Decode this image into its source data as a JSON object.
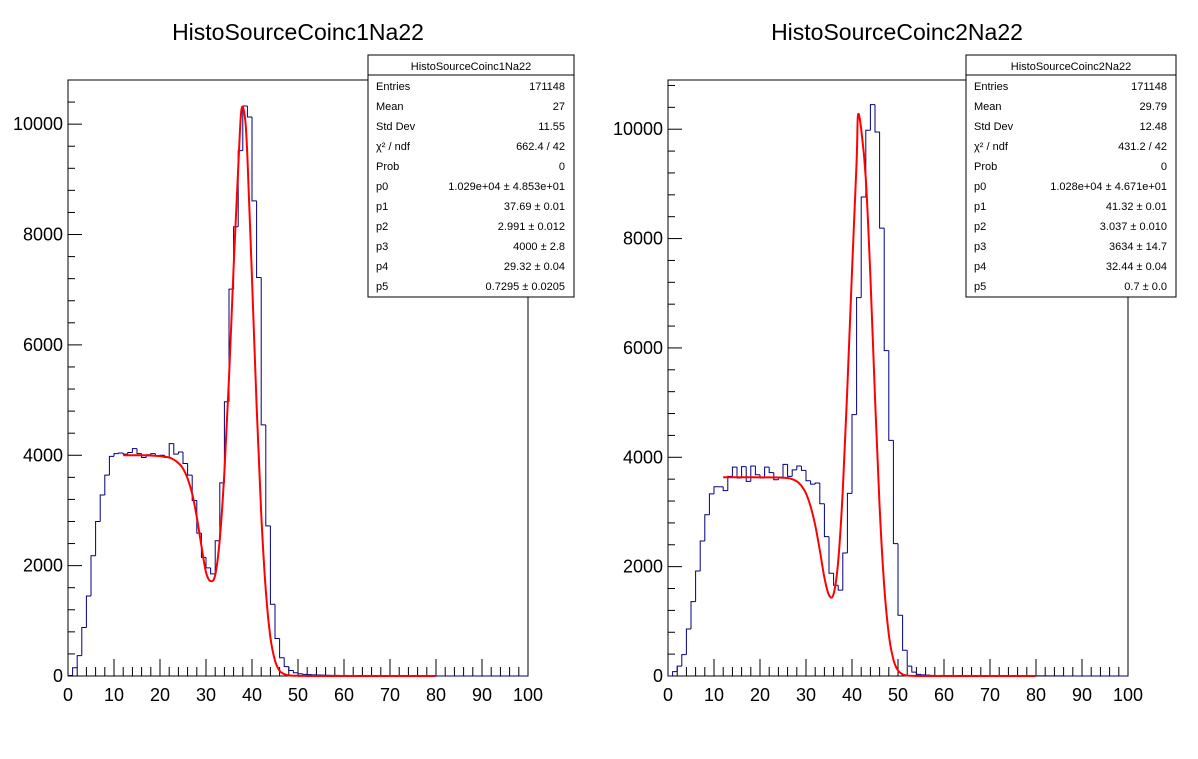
{
  "chart_data": [
    {
      "type": "histogram",
      "title": "HistoSourceCoinc1Na22",
      "xlabel": "",
      "ylabel": "",
      "xlim": [
        0,
        100
      ],
      "ylim": [
        0,
        10800
      ],
      "grid": false,
      "legend": "top-right",
      "bin_width": 1,
      "x_ticks": [
        "0",
        "10",
        "20",
        "30",
        "40",
        "50",
        "60",
        "70",
        "80",
        "90",
        "100"
      ],
      "y_ticks": [
        "0",
        "2000",
        "4000",
        "6000",
        "8000",
        "10000"
      ],
      "colors": {
        "histogram": "#000080",
        "fit": "#ff0000"
      },
      "series": [
        {
          "values": [
            10,
            150,
            370,
            880,
            1450,
            2180,
            2800,
            3280,
            3640,
            3980,
            4030,
            4040,
            4020,
            4050,
            4120,
            4030,
            3960,
            4010,
            4030,
            3990,
            4000,
            3960,
            4210,
            4020,
            4060,
            3850,
            3640,
            3180,
            2590,
            2150,
            1960,
            1850,
            2450,
            3500,
            4970,
            7010,
            8140,
            9520,
            10330,
            10130,
            8610,
            7220,
            4550,
            2720,
            1300,
            680,
            330,
            170,
            100,
            60,
            40,
            30,
            25,
            20,
            18,
            15,
            14,
            12,
            11,
            10,
            10,
            9,
            8,
            8,
            7,
            7,
            6,
            6,
            6,
            5,
            5,
            5,
            5,
            4,
            4,
            4,
            4,
            3,
            3,
            3,
            0,
            0,
            0,
            0,
            0,
            0,
            0,
            0,
            0,
            0,
            0,
            0,
            0,
            0,
            0,
            0,
            0,
            0,
            0,
            0
          ]
        },
        {
          "fit": true,
          "x": [
            12,
            14,
            16,
            18,
            20,
            22,
            23,
            24,
            25,
            26,
            27,
            28,
            29,
            30,
            31,
            32,
            33,
            34,
            35,
            36,
            37,
            37.7,
            38.5,
            39,
            40,
            41,
            42,
            43,
            44,
            45,
            46,
            47,
            48,
            50,
            52,
            55,
            60,
            65,
            70,
            75,
            80
          ],
          "y": [
            4000,
            4000,
            4000,
            3995,
            3985,
            3960,
            3920,
            3860,
            3760,
            3580,
            3300,
            2880,
            2360,
            1880,
            1720,
            1830,
            2480,
            3700,
            5400,
            7400,
            9200,
            10260,
            10100,
            9400,
            7200,
            4900,
            2950,
            1550,
            700,
            280,
            95,
            35,
            12,
            3,
            1,
            0,
            0,
            0,
            0,
            0,
            0
          ]
        }
      ]
    },
    {
      "type": "histogram",
      "title": "HistoSourceCoinc2Na22",
      "xlabel": "",
      "ylabel": "",
      "xlim": [
        0,
        100
      ],
      "ylim": [
        0,
        10900
      ],
      "grid": false,
      "legend": "top-right",
      "bin_width": 1,
      "x_ticks": [
        "0",
        "10",
        "20",
        "30",
        "40",
        "50",
        "60",
        "70",
        "80",
        "90",
        "100"
      ],
      "y_ticks": [
        "0",
        "2000",
        "4000",
        "6000",
        "8000",
        "10000"
      ],
      "colors": {
        "histogram": "#000080",
        "fit": "#ff0000"
      },
      "series": [
        {
          "values": [
            0,
            80,
            180,
            390,
            860,
            1360,
            1920,
            2470,
            2950,
            3330,
            3460,
            3460,
            3390,
            3650,
            3820,
            3620,
            3830,
            3560,
            3840,
            3680,
            3620,
            3820,
            3720,
            3590,
            3640,
            3870,
            3650,
            3770,
            3840,
            3760,
            3570,
            3510,
            3530,
            3150,
            2550,
            1880,
            1660,
            1570,
            2250,
            3340,
            4780,
            6920,
            8760,
            9980,
            10450,
            9950,
            8190,
            5950,
            4310,
            2420,
            1110,
            470,
            180,
            70,
            30,
            20,
            15,
            12,
            10,
            10,
            9,
            8,
            8,
            7,
            7,
            6,
            6,
            6,
            5,
            5,
            5,
            5,
            4,
            4,
            4,
            4,
            3,
            3,
            3,
            3,
            3,
            3,
            2,
            2,
            2,
            2,
            0,
            0,
            0,
            0,
            0,
            0,
            0,
            0,
            0,
            0,
            0,
            0,
            0,
            0
          ]
        },
        {
          "fit": true,
          "x": [
            12,
            15,
            18,
            21,
            24,
            26,
            27,
            28,
            29,
            30,
            31,
            32,
            33,
            34,
            35,
            36,
            37,
            38,
            39,
            40,
            41,
            41.3,
            42,
            43,
            44,
            45,
            46,
            47,
            48,
            49,
            50,
            51,
            52,
            54,
            56,
            60,
            65,
            70,
            75,
            80
          ],
          "y": [
            3634,
            3634,
            3634,
            3632,
            3630,
            3620,
            3600,
            3560,
            3480,
            3340,
            3100,
            2760,
            2300,
            1800,
            1480,
            1500,
            2100,
            3400,
            5300,
            7400,
            9400,
            10250,
            10000,
            9100,
            7300,
            5100,
            3100,
            1650,
            760,
            300,
            100,
            30,
            8,
            1,
            0,
            0,
            0,
            0,
            0,
            0
          ]
        }
      ]
    }
  ],
  "stats": [
    {
      "title": "HistoSourceCoinc1Na22",
      "rows": [
        {
          "label": "Entries",
          "value": "171148"
        },
        {
          "label": "Mean",
          "value": "27"
        },
        {
          "label": "Std Dev",
          "value": "11.55"
        },
        {
          "label": "χ² / ndf",
          "value": "662.4 / 42"
        },
        {
          "label": "Prob",
          "value": "0"
        },
        {
          "label": "p0",
          "value": "1.029e+04 ± 4.853e+01"
        },
        {
          "label": "p1",
          "value": "37.69 ± 0.01"
        },
        {
          "label": "p2",
          "value": "2.991 ± 0.012"
        },
        {
          "label": "p3",
          "value": "4000 ± 2.8"
        },
        {
          "label": "p4",
          "value": "29.32 ± 0.04"
        },
        {
          "label": "p5",
          "value": "0.7295 ± 0.0205"
        }
      ]
    },
    {
      "title": "HistoSourceCoinc2Na22",
      "rows": [
        {
          "label": "Entries",
          "value": "171148"
        },
        {
          "label": "Mean",
          "value": "29.79"
        },
        {
          "label": "Std Dev",
          "value": "12.48"
        },
        {
          "label": "χ² / ndf",
          "value": "431.2 / 42"
        },
        {
          "label": "Prob",
          "value": "0"
        },
        {
          "label": "p0",
          "value": "1.028e+04 ± 4.671e+01"
        },
        {
          "label": "p1",
          "value": "41.32 ± 0.01"
        },
        {
          "label": "p2",
          "value": "3.037 ± 0.010"
        },
        {
          "label": "p3",
          "value": "3634 ± 14.7"
        },
        {
          "label": "p4",
          "value": "32.44 ± 0.04"
        },
        {
          "label": "p5",
          "value": "0.7 ± 0.0"
        }
      ]
    }
  ]
}
